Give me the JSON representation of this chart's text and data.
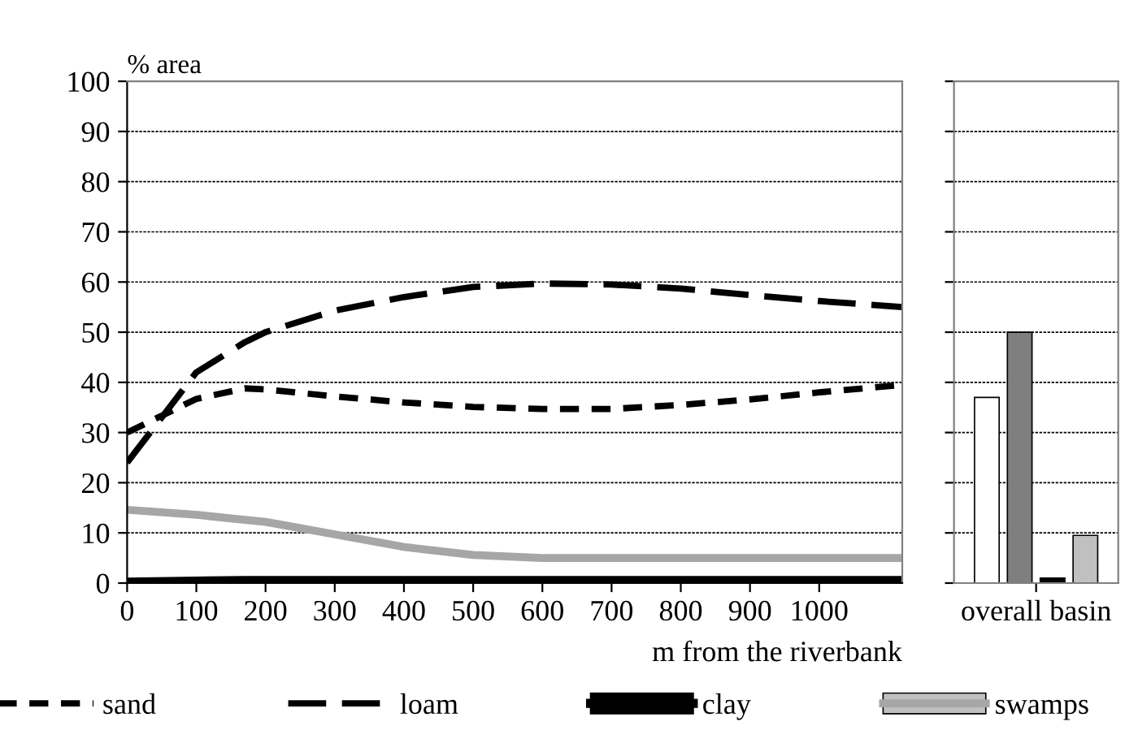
{
  "chart_data": [
    {
      "type": "line",
      "ylabel": "% area",
      "xlabel": "m from the riverbank",
      "xlim": [
        0,
        1120
      ],
      "xticks": [
        0,
        100,
        200,
        300,
        400,
        500,
        600,
        700,
        800,
        900,
        1000
      ],
      "ylim": [
        0,
        100
      ],
      "yticks": [
        0,
        10,
        20,
        30,
        40,
        50,
        60,
        70,
        80,
        90,
        100
      ],
      "grid": "y",
      "legend": "bottom",
      "x": [
        0,
        100,
        170,
        200,
        300,
        400,
        500,
        600,
        700,
        800,
        900,
        1000,
        1120
      ],
      "series": [
        {
          "name": "sand",
          "color": "#000000",
          "line_style": "dotted",
          "values": [
            30,
            36.7,
            38.8,
            38.6,
            37.2,
            36,
            35.1,
            34.7,
            34.7,
            35.5,
            36.6,
            38,
            39.5
          ]
        },
        {
          "name": "loam",
          "color": "#000000",
          "line_style": "dashed",
          "values": [
            24,
            42,
            48,
            50,
            54.3,
            57,
            59,
            59.7,
            59.5,
            58.7,
            57.4,
            56.2,
            55
          ]
        },
        {
          "name": "clay",
          "color": "#000000",
          "line_style": "solid",
          "values": [
            0.2,
            0.4,
            0.5,
            0.5,
            0.5,
            0.5,
            0.5,
            0.5,
            0.5,
            0.5,
            0.5,
            0.5,
            0.5
          ]
        },
        {
          "name": "swamps",
          "color": "#a6a6a6",
          "line_style": "solid",
          "values": [
            14.6,
            13.6,
            12.6,
            12.2,
            9.7,
            7.2,
            5.6,
            5,
            5,
            5,
            5,
            5,
            5
          ]
        }
      ]
    },
    {
      "type": "bar",
      "categories": [
        "overall basin"
      ],
      "ylim": [
        0,
        100
      ],
      "yticks": [
        0,
        10,
        20,
        30,
        40,
        50,
        60,
        70,
        80,
        90,
        100
      ],
      "grid": "y",
      "tick_labels": "x",
      "series": [
        {
          "color": "#ffffff",
          "values": [
            37
          ]
        },
        {
          "color": "#7f7f7f",
          "values": [
            50
          ]
        },
        {
          "color": "#000000",
          "values": [
            1
          ]
        },
        {
          "color": "#c0c0c0",
          "values": [
            9.5
          ]
        }
      ]
    }
  ]
}
